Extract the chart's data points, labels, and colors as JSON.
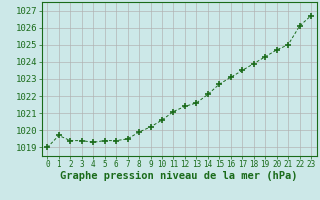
{
  "x": [
    0,
    1,
    2,
    3,
    4,
    5,
    6,
    7,
    8,
    9,
    10,
    11,
    12,
    13,
    14,
    15,
    16,
    17,
    18,
    19,
    20,
    21,
    22,
    23
  ],
  "y": [
    1019.0,
    1019.7,
    1019.4,
    1019.4,
    1019.3,
    1019.4,
    1019.4,
    1019.5,
    1019.9,
    1020.2,
    1020.6,
    1021.1,
    1021.4,
    1021.6,
    1022.1,
    1022.7,
    1023.1,
    1023.5,
    1023.9,
    1024.3,
    1024.7,
    1025.0,
    1026.1,
    1026.7
  ],
  "ylim": [
    1018.5,
    1027.5
  ],
  "yticks": [
    1019,
    1020,
    1021,
    1022,
    1023,
    1024,
    1025,
    1026,
    1027
  ],
  "xtick_labels": [
    "0",
    "1",
    "2",
    "3",
    "4",
    "5",
    "6",
    "7",
    "8",
    "9",
    "10",
    "11",
    "12",
    "13",
    "14",
    "15",
    "16",
    "17",
    "18",
    "19",
    "20",
    "21",
    "22",
    "23"
  ],
  "xlabel": "Graphe pression niveau de la mer (hPa)",
  "line_color": "#1a6b1a",
  "marker_color": "#1a6b1a",
  "bg_color": "#cce8e8",
  "grid_color": "#b0b0b0",
  "xlabel_color": "#1a6b1a",
  "tick_color": "#1a6b1a",
  "xlabel_fontsize": 7.5,
  "ytick_fontsize": 6.5,
  "xtick_fontsize": 5.5
}
